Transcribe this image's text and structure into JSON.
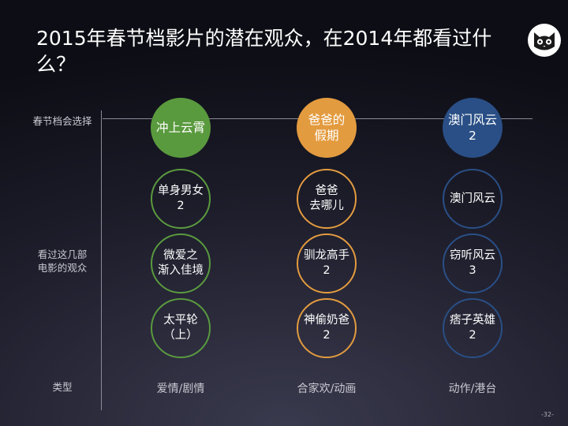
{
  "slide": {
    "title": "2015年春节档影片的潜在观众，在2014年都看过什么？",
    "page_number": "-32-"
  },
  "row_labels": {
    "choice": "春节档会选择",
    "watched": "看过这几部\n电影的观众",
    "genre": "类型"
  },
  "columns": [
    {
      "top": "冲上云霄",
      "movies": [
        "单身男女\n2",
        "微爱之\n渐入佳境",
        "太平轮\n（上）"
      ],
      "genre": "爱情/剧情",
      "color": "#5a9a3e"
    },
    {
      "top": "爸爸的\n假期",
      "movies": [
        "爸爸\n去哪儿",
        "驯龙高手\n2",
        "神偷奶爸\n2"
      ],
      "genre": "合家欢/动画",
      "color": "#e39b3f"
    },
    {
      "top": "澳门风云\n2",
      "movies": [
        "澳门风云",
        "窃听风云\n3",
        "痞子英雄\n2"
      ],
      "genre": "动作/港台",
      "color": "#2a4f86"
    }
  ],
  "logo": {
    "icon": "cat-face-icon"
  }
}
